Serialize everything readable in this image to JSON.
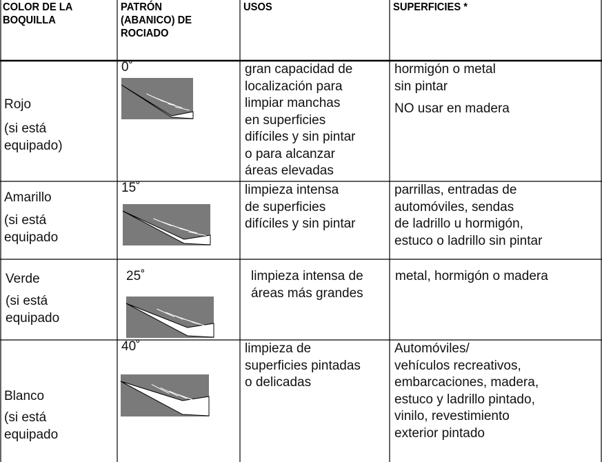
{
  "table": {
    "header": [
      [
        "COLOR DE LA",
        "BOQUILLA"
      ],
      [
        "PATRÓN",
        "(ABANICO) DE",
        "ROCIADO"
      ],
      [
        "USOS"
      ],
      [
        "SUPERFICIES *"
      ]
    ],
    "rows": [
      {
        "color": "Rojo",
        "note": [
          "(si está",
          "equipado)"
        ],
        "angle": "0˚",
        "uses": [
          "gran capacidad de",
          "localización para",
          "limpiar manchas",
          "en superficies",
          "difíciles y sin pintar",
          "o para alcanzar",
          "áreas elevadas"
        ],
        "surfaces": [
          [
            "hormigón o metal",
            "sin pintar"
          ],
          [
            "NO usar en madera"
          ]
        ]
      },
      {
        "color": "Amarillo",
        "note": [
          "(si está",
          "equipado"
        ],
        "angle": "15˚",
        "uses": [
          "limpieza intensa",
          "de superficies",
          "difíciles y sin pintar"
        ],
        "surfaces": [
          [
            "parrillas, entradas de",
            "automóviles, sendas",
            "de ladrillo u hormigón,",
            "estuco o ladrillo sin pintar"
          ]
        ]
      },
      {
        "color": "Verde",
        "note": [
          "(si está",
          "equipado"
        ],
        "angle": "25˚",
        "uses": [
          "limpieza intensa de",
          "áreas más grandes"
        ],
        "surfaces": [
          [
            "metal, hormigón o madera"
          ]
        ]
      },
      {
        "color": "Blanco",
        "note": [
          "(si está",
          "equipado"
        ],
        "angle": "40˚",
        "uses": [
          "limpieza de",
          "superficies pintadas",
          "o delicadas"
        ],
        "surfaces": [
          [
            "Automóviles/",
            "vehículos recreativos,",
            "embarcaciones, madera,",
            "estuco y ladrillo pintado,",
            "vinilo, revestimiento",
            "exterior pintado"
          ]
        ]
      }
    ]
  }
}
